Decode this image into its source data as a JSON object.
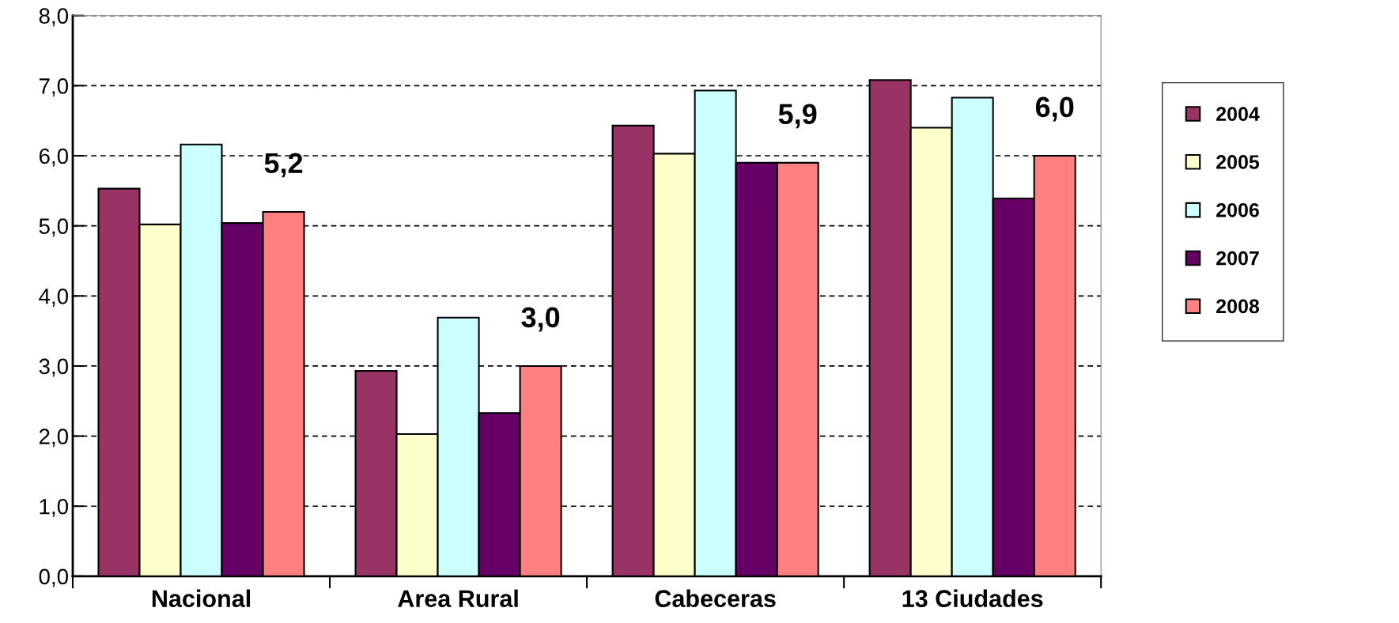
{
  "chart_data": {
    "type": "bar",
    "categories": [
      "Nacional",
      "Area Rural",
      "Cabeceras",
      "13 Ciudades"
    ],
    "series": [
      {
        "name": "2004",
        "color": "#993366",
        "values": [
          5.53,
          2.93,
          6.43,
          7.08
        ]
      },
      {
        "name": "2005",
        "color": "#ffffcc",
        "values": [
          5.02,
          2.03,
          6.03,
          6.4
        ]
      },
      {
        "name": "2006",
        "color": "#ccffff",
        "values": [
          6.16,
          3.69,
          6.93,
          6.83
        ]
      },
      {
        "name": "2007",
        "color": "#660066",
        "values": [
          5.04,
          2.33,
          5.9,
          5.39
        ]
      },
      {
        "name": "2008",
        "color": "#ff8080",
        "values": [
          5.2,
          3.0,
          5.9,
          6.0
        ],
        "value_labels": [
          "5,2",
          "3,0",
          "5,9",
          "6,0"
        ]
      }
    ],
    "ylim": [
      0,
      8
    ],
    "yticks": [
      {
        "value": 0,
        "label": "0,0"
      },
      {
        "value": 1,
        "label": "1,0"
      },
      {
        "value": 2,
        "label": "2,0"
      },
      {
        "value": 3,
        "label": "3,0"
      },
      {
        "value": 4,
        "label": "4,0"
      },
      {
        "value": 5,
        "label": "5,0"
      },
      {
        "value": 6,
        "label": "6,0"
      },
      {
        "value": 7,
        "label": "7,0"
      },
      {
        "value": 8,
        "label": "8,0"
      }
    ],
    "grid": "y",
    "legend": "right",
    "line_style": "dashed"
  }
}
